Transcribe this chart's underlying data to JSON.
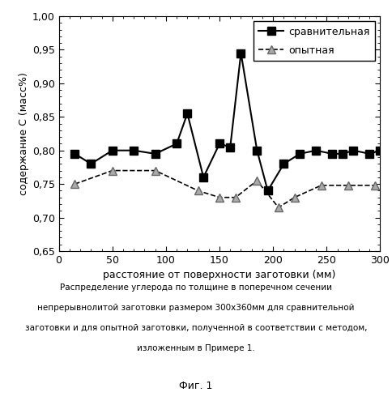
{
  "comparative_x": [
    15,
    30,
    50,
    70,
    90,
    110,
    120,
    135,
    150,
    160,
    170,
    185,
    195,
    210,
    225,
    240,
    255,
    265,
    275,
    290,
    300
  ],
  "comparative_y": [
    0.795,
    0.78,
    0.8,
    0.8,
    0.795,
    0.81,
    0.855,
    0.76,
    0.81,
    0.805,
    0.945,
    0.8,
    0.74,
    0.78,
    0.795,
    0.8,
    0.795,
    0.795,
    0.8,
    0.795,
    0.8
  ],
  "experimental_x": [
    15,
    50,
    90,
    130,
    150,
    165,
    185,
    205,
    220,
    245,
    270,
    295
  ],
  "experimental_y": [
    0.75,
    0.77,
    0.77,
    0.74,
    0.73,
    0.73,
    0.755,
    0.715,
    0.73,
    0.748,
    0.748,
    0.748
  ],
  "xlabel": "расстояние от поверхности заготовки (мм)",
  "ylabel": "содержание C (масс%)",
  "legend_comparative": "сравнительная",
  "legend_experimental": "опытная",
  "xlim": [
    0,
    300
  ],
  "ylim": [
    0.65,
    1.0
  ],
  "xticks": [
    0,
    50,
    100,
    150,
    200,
    250,
    300
  ],
  "yticks": [
    0.65,
    0.7,
    0.75,
    0.8,
    0.85,
    0.9,
    0.95,
    1.0
  ],
  "caption_line1": "Распределение углерода по толщине в поперечном сечении",
  "caption_line2": "непрерывнолитой заготовки размером 300х360мм для сравнительной",
  "caption_line3": "заготовки и для опытной заготовки, полученной в соответствии с методом,",
  "caption_line4": "изложенным в Примере 1.",
  "fig_label": "Фиг. 1"
}
